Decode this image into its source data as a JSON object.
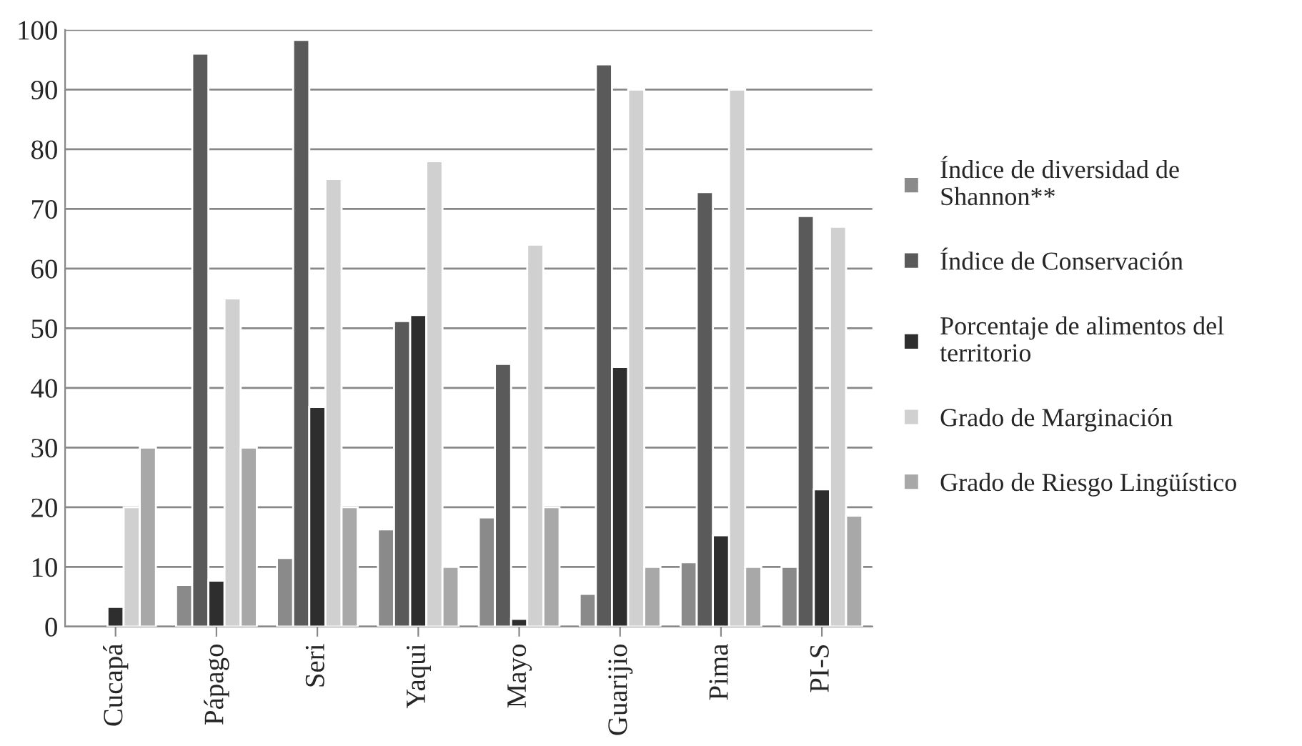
{
  "chart_data": {
    "type": "bar",
    "categories": [
      "Cucapá",
      "Pápago",
      "Seri",
      "Yaqui",
      "Mayo",
      "Guarijio",
      "Pima",
      "PI-S"
    ],
    "series": [
      {
        "name": "Índice de diversidad de Shannon**",
        "color": "#8a8a8a",
        "values": [
          null,
          7,
          11.5,
          16.3,
          18.3,
          5.5,
          10.8,
          10
        ]
      },
      {
        "name": "Índice de Conservación",
        "color": "#5a5a5a",
        "values": [
          null,
          96,
          98.3,
          51.2,
          44,
          94.2,
          72.8,
          68.8
        ]
      },
      {
        "name": "Porcentaje de alimentos del territorio",
        "color": "#2e2e2e",
        "values": [
          3.3,
          7.7,
          36.8,
          52.2,
          1.3,
          43.5,
          15.3,
          23
        ]
      },
      {
        "name": "Grado de Marginación",
        "color": "#d0d0d0",
        "values": [
          20,
          55,
          75,
          78,
          64,
          90,
          90,
          67
        ]
      },
      {
        "name": "Grado de Riesgo Lingüístico",
        "color": "#a8a8a8",
        "values": [
          30,
          30,
          20,
          10,
          20,
          10,
          10,
          18.6
        ]
      }
    ],
    "ylim": [
      0,
      100
    ],
    "yticks": [
      0,
      10,
      20,
      30,
      40,
      50,
      60,
      70,
      80,
      90,
      100
    ],
    "grid": "y",
    "legend": "right"
  }
}
